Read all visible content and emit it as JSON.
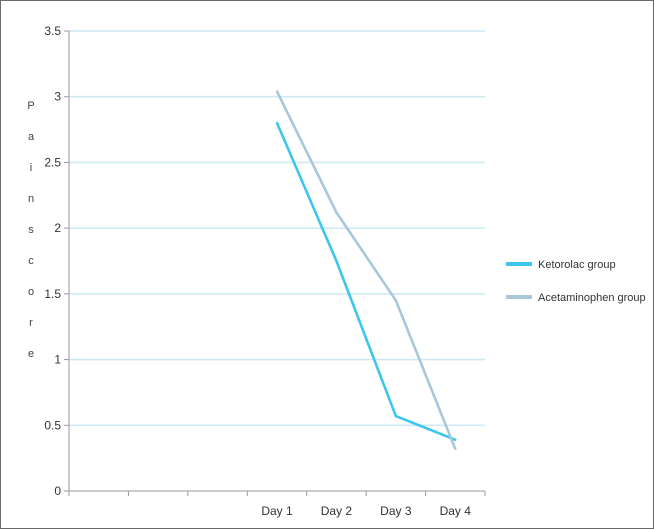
{
  "chart_data": {
    "type": "line",
    "categories": [
      "",
      "",
      "",
      "Day 1",
      "Day 2",
      "Day 3",
      "Day 4"
    ],
    "series": [
      {
        "name": "Ketorolac group",
        "color": "#3ec6ee",
        "values": [
          null,
          null,
          null,
          2.8,
          1.75,
          0.57,
          0.39
        ]
      },
      {
        "name": "Acetaminophen group",
        "color": "#a9c7da",
        "values": [
          null,
          null,
          null,
          3.04,
          2.12,
          1.45,
          0.32
        ]
      }
    ],
    "ylim": [
      0,
      3.5
    ],
    "yticks": [
      "0",
      "0.5",
      "1",
      "1.5",
      "2",
      "2.5",
      "3",
      "3.5"
    ],
    "ylabel": "Pain score",
    "grid": true,
    "legend": "right"
  }
}
